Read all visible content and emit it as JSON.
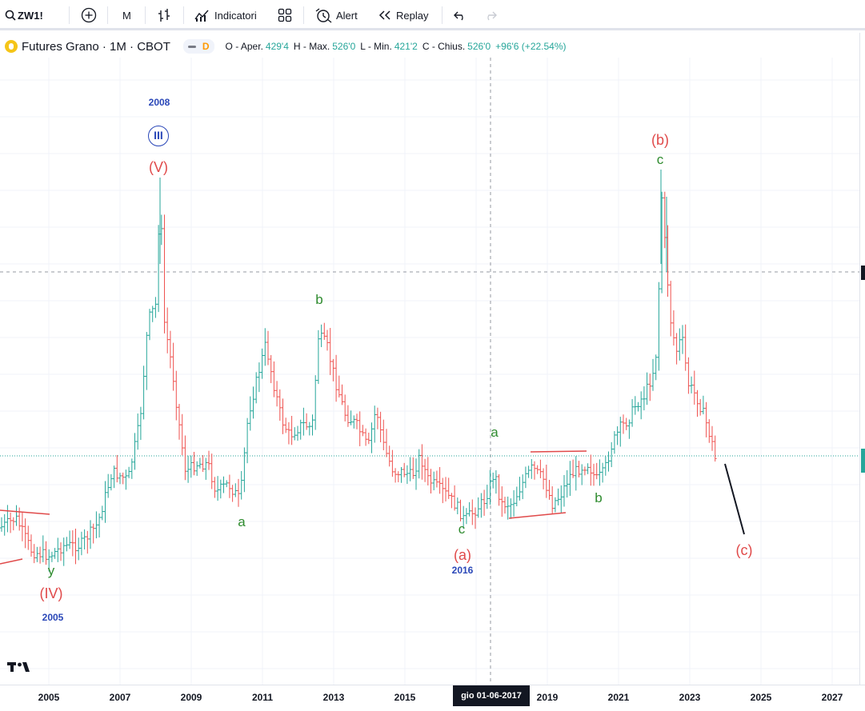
{
  "toolbar": {
    "symbol": "ZW1!",
    "add_icon": "plus-circle-icon",
    "interval": "M",
    "bar_style_icon": "bar-chart-icon",
    "indicators_label": "Indicatori",
    "layouts_icon": "grid-icon",
    "alert_label": "Alert",
    "replay_label": "Replay",
    "undo_icon": "undo-icon",
    "redo_icon": "redo-icon"
  },
  "legend": {
    "title": "Futures Grano · 1M · CBOT",
    "badge": "D",
    "open_label": "O - Aper.",
    "open": "429'4",
    "high_label": "H - Max.",
    "high": "526'0",
    "low_label": "L - Min.",
    "low": "421'2",
    "close_label": "C - Chius.",
    "close": "526'0",
    "change": "+96'6 (+22.54%)"
  },
  "xaxis": {
    "labels": [
      "2005",
      "2007",
      "2009",
      "2011",
      "2013",
      "2015",
      "2019",
      "2021",
      "2023",
      "2025",
      "2027"
    ],
    "crosshair_label": "gio 01-06-2017"
  },
  "annotations": {
    "y2008": "2008",
    "III": "III",
    "V": "(V)",
    "b1": "b",
    "a1": "a",
    "a2": "a",
    "c1": "c",
    "a_paren": "(a)",
    "y2016": "2016",
    "b2": "b",
    "b_paren": "(b)",
    "c2": "c",
    "c_paren": "(c)",
    "y": "y",
    "IV": "(IV)",
    "y2005": "2005"
  },
  "colors": {
    "up": "#26a69a",
    "down": "#ef5350",
    "wave_red": "#e04a4a",
    "wave_green": "#2e8b2e",
    "wave_blue": "#2a47b8"
  },
  "chart_data": {
    "type": "ohlc",
    "interval": "1M",
    "symbol": "ZW1!",
    "x_range": [
      "2004",
      "2027"
    ],
    "last_bar": {
      "open": "429'4",
      "high": "526'0",
      "low": "421'2",
      "close": "526'0"
    }
  }
}
